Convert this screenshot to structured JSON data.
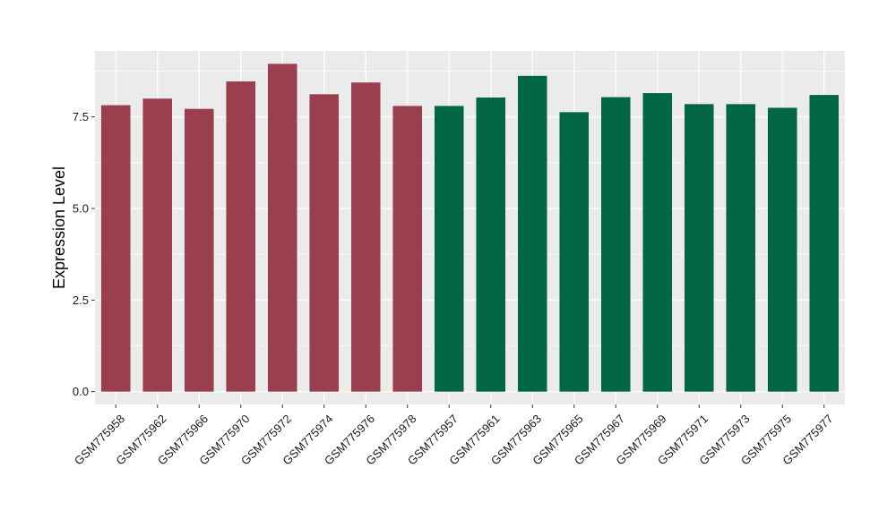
{
  "chart_data": {
    "type": "bar",
    "title": "",
    "xlabel": "",
    "ylabel": "Expression Level",
    "categories": [
      "GSM775958",
      "GSM775962",
      "GSM775966",
      "GSM775970",
      "GSM775972",
      "GSM775974",
      "GSM775976",
      "GSM775978",
      "GSM775957",
      "GSM775961",
      "GSM775963",
      "GSM775965",
      "GSM775967",
      "GSM775969",
      "GSM775971",
      "GSM775973",
      "GSM775975",
      "GSM775977"
    ],
    "values": [
      7.82,
      8.0,
      7.72,
      8.47,
      8.95,
      8.12,
      8.44,
      7.8,
      7.8,
      8.03,
      8.62,
      7.63,
      8.04,
      8.15,
      7.85,
      7.85,
      7.75,
      8.1
    ],
    "bar_groups": [
      0,
      0,
      0,
      0,
      0,
      0,
      0,
      0,
      1,
      1,
      1,
      1,
      1,
      1,
      1,
      1,
      1,
      1
    ],
    "group_colors": [
      "#9A3F4E",
      "#006643"
    ],
    "ylim": [
      -0.35,
      9.3
    ],
    "yticks": [
      0.0,
      2.5,
      5.0,
      7.5
    ],
    "ytick_labels": [
      "0.0",
      "2.5",
      "5.0",
      "7.5"
    ],
    "grid": true,
    "legend": "none",
    "panel_background": "#EBEBEB",
    "gridline_color": "#FFFFFF"
  }
}
